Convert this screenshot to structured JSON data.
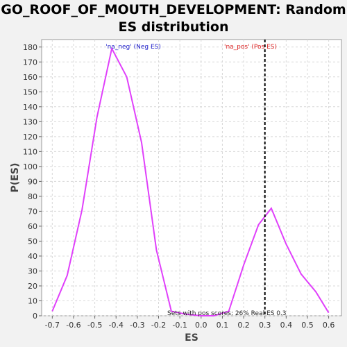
{
  "chart_data": {
    "type": "line",
    "title_line1": "GO_ROOF_OF_MOUTH_DEVELOPMENT: Random",
    "title_line2": "ES distribution",
    "xlabel": "ES",
    "ylabel": "P(ES)",
    "xlim": [
      -0.75,
      0.66
    ],
    "ylim": [
      0,
      185
    ],
    "xticks": [
      -0.7,
      -0.6,
      -0.5,
      -0.4,
      -0.3,
      -0.2,
      -0.1,
      0.0,
      0.1,
      0.2,
      0.3,
      0.4,
      0.5,
      0.6
    ],
    "xtick_labels": [
      "-0.7",
      "-0.6",
      "-0.5",
      "-0.4",
      "-0.3",
      "-0.2",
      "-0.1",
      "0.0",
      "0.1",
      "0.2",
      "0.3",
      "0.4",
      "0.5",
      "0.6"
    ],
    "yticks": [
      0,
      10,
      20,
      30,
      40,
      50,
      60,
      70,
      80,
      90,
      100,
      110,
      120,
      130,
      140,
      150,
      160,
      170,
      180
    ],
    "grid": true,
    "series": [
      {
        "color": "#e040fb",
        "x": [
          -0.7,
          -0.63,
          -0.56,
          -0.49,
          -0.42,
          -0.35,
          -0.28,
          -0.21,
          -0.14,
          -0.07,
          0.0,
          0.06,
          0.13,
          0.2,
          0.27,
          0.33,
          0.4,
          0.47,
          0.54,
          0.6
        ],
        "y": [
          3,
          27,
          71,
          133,
          179,
          160,
          116,
          44,
          3,
          1,
          0,
          0,
          3,
          34,
          61,
          72,
          48,
          28,
          16,
          2
        ]
      }
    ],
    "real_es_line": {
      "x": 0.3,
      "color": "#000000"
    },
    "annotations": {
      "neg": {
        "text": "'na_neg' (Neg ES)",
        "color": "#2222cc"
      },
      "pos": {
        "text": "'na_pos' (Pos ES)",
        "color": "#dd2222"
      },
      "bottom": {
        "text": "Sets with pos scores: 26% Real ES 0.3",
        "color": "#222222"
      }
    }
  }
}
